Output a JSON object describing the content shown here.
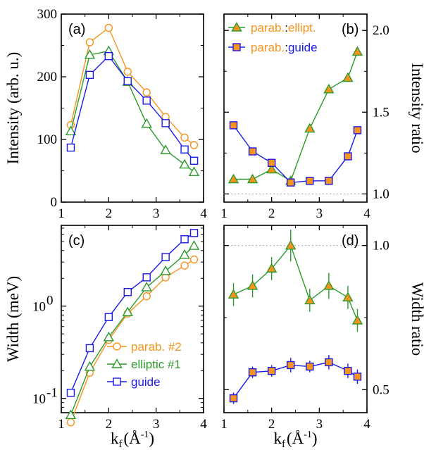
{
  "colors": {
    "orange": "#F7941D",
    "green": "#2C9A2C",
    "blue": "#1A1AE6",
    "olive": "#8C8C2A"
  },
  "chart_data": [
    {
      "panel": "a",
      "type": "line",
      "panel_label": "(a)",
      "xlabel": "",
      "ylabel": "Intensity (arb. u.)",
      "xlim": [
        1,
        4
      ],
      "ylim": [
        0,
        300
      ],
      "xticks": [
        1,
        2,
        3,
        4
      ],
      "yticks": [
        0,
        100,
        200,
        300
      ],
      "x": [
        1.2,
        1.6,
        2.0,
        2.4,
        2.8,
        3.2,
        3.6,
        3.8
      ],
      "series": [
        {
          "name": "parab. #2",
          "marker": "circle",
          "color": "orange",
          "values": [
            123,
            255,
            278,
            208,
            175,
            136,
            103,
            91
          ]
        },
        {
          "name": "elliptic #1",
          "marker": "triangle",
          "color": "green",
          "values": [
            113,
            235,
            241,
            192,
            125,
            83,
            60,
            48
          ]
        },
        {
          "name": "guide",
          "marker": "square",
          "color": "blue",
          "values": [
            87,
            203,
            233,
            193,
            162,
            126,
            84,
            66
          ]
        }
      ]
    },
    {
      "panel": "b",
      "type": "line",
      "panel_label": "(b)",
      "xlabel": "",
      "ylabel": "Intensity ratio",
      "xlim": [
        1,
        4
      ],
      "ylim": [
        0.95,
        2.1
      ],
      "xticks": [
        1,
        2,
        3,
        4
      ],
      "yticks": [
        1.0,
        1.5,
        2.0
      ],
      "ytick_labels": [
        "1.0",
        "1.5",
        "2.0"
      ],
      "reference_line": 1.0,
      "x": [
        1.2,
        1.6,
        2.0,
        2.4,
        2.8,
        3.2,
        3.6,
        3.8
      ],
      "legend": [
        {
          "left": "parab.",
          "sep": ":",
          "right": "ellipt.",
          "marker": "triangle"
        },
        {
          "left": "parab.",
          "sep": ":",
          "right": "guide",
          "marker": "square"
        }
      ],
      "series": [
        {
          "name": "parab.:ellipt.",
          "marker": "triangle",
          "color": "green",
          "fill": "orange",
          "values": [
            1.09,
            1.09,
            1.15,
            1.08,
            1.4,
            1.64,
            1.71,
            1.87
          ]
        },
        {
          "name": "parab.:guide",
          "marker": "square",
          "color": "blue",
          "fill": "orange",
          "values": [
            1.42,
            1.26,
            1.19,
            1.07,
            1.08,
            1.08,
            1.23,
            1.39
          ]
        }
      ]
    },
    {
      "panel": "c",
      "type": "line",
      "panel_label": "(c)",
      "xlabel": "k_f (Å^-1)",
      "ylabel": "Width (meV)",
      "xlim": [
        1,
        4
      ],
      "ylim": [
        0.07,
        7.5
      ],
      "yscale": "log",
      "xticks": [
        1,
        2,
        3,
        4
      ],
      "yticks": [
        0.1,
        1,
        10
      ],
      "ytick_labels": [
        "10",
        "10",
        "10"
      ],
      "ytick_exponents": [
        "-1",
        "0",
        ""
      ],
      "x": [
        1.2,
        1.6,
        2.0,
        2.4,
        2.8,
        3.2,
        3.6,
        3.8
      ],
      "series": [
        {
          "name": "parab. #2",
          "marker": "circle",
          "color": "orange",
          "values": [
            0.055,
            0.19,
            0.43,
            0.83,
            1.28,
            2.05,
            2.75,
            3.2
          ]
        },
        {
          "name": "elliptic #1",
          "marker": "triangle",
          "color": "green",
          "values": [
            0.066,
            0.22,
            0.46,
            0.86,
            1.6,
            2.4,
            3.6,
            4.5
          ]
        },
        {
          "name": "guide",
          "marker": "square",
          "color": "blue",
          "values": [
            0.115,
            0.35,
            0.76,
            1.42,
            2.05,
            3.4,
            5.3,
            6.2
          ]
        }
      ]
    },
    {
      "panel": "d",
      "type": "line",
      "panel_label": "(d)",
      "xlabel": "k_f (Å^-1)",
      "ylabel": "Width ratio",
      "xlim": [
        1,
        4
      ],
      "ylim": [
        0.42,
        1.07
      ],
      "xticks": [
        1,
        2,
        3,
        4
      ],
      "yticks": [
        0.5,
        1.0
      ],
      "ytick_labels": [
        "0.5",
        "1.0"
      ],
      "reference_line": 1.0,
      "x": [
        1.2,
        1.6,
        2.0,
        2.4,
        2.8,
        3.2,
        3.6,
        3.8
      ],
      "series": [
        {
          "name": "parab.:ellipt.",
          "marker": "triangle",
          "color": "green",
          "fill": "orange",
          "values": [
            0.83,
            0.86,
            0.92,
            1.0,
            0.81,
            0.86,
            0.82,
            0.74
          ],
          "errors": [
            0.04,
            0.04,
            0.04,
            0.055,
            0.04,
            0.045,
            0.04,
            0.04
          ]
        },
        {
          "name": "parab.:guide",
          "marker": "square",
          "color": "blue",
          "fill": "orange",
          "values": [
            0.47,
            0.56,
            0.565,
            0.585,
            0.58,
            0.595,
            0.565,
            0.545
          ],
          "errors": [
            0.02,
            0.02,
            0.02,
            0.025,
            0.02,
            0.025,
            0.025,
            0.025
          ]
        }
      ]
    }
  ],
  "legend_c": {
    "entries": [
      {
        "label": "parab. #2",
        "marker": "circle",
        "color": "orange"
      },
      {
        "label": "elliptic #1",
        "marker": "triangle",
        "color": "green"
      },
      {
        "label": "guide",
        "marker": "square",
        "color": "blue"
      }
    ]
  }
}
